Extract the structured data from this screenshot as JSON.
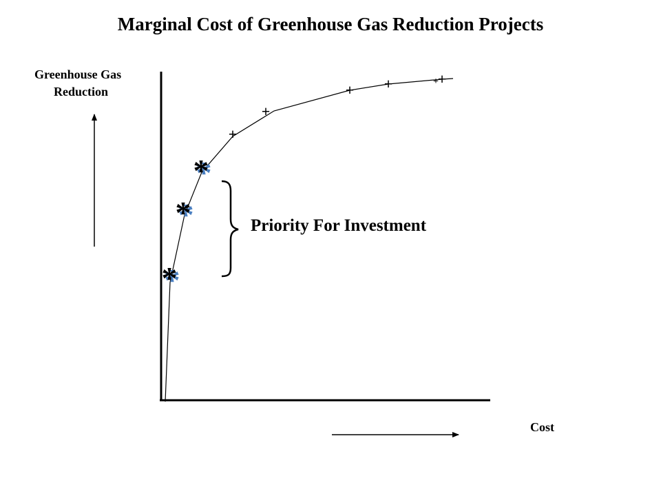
{
  "title": "Marginal Cost of Greenhouse Gas Reduction Projects",
  "y_axis_label": [
    "Greenhouse Gas",
    "Reduction"
  ],
  "x_axis_label": "Cost",
  "annotation": "Priority For Investment",
  "colors": {
    "line": "#000000",
    "star_shadow": "#4a7fc1",
    "background": "#ffffff"
  },
  "markers": {
    "priority_projects": {
      "symbol": "*",
      "count": 3
    },
    "other_projects": {
      "symbol": "+",
      "count": 6
    }
  }
}
